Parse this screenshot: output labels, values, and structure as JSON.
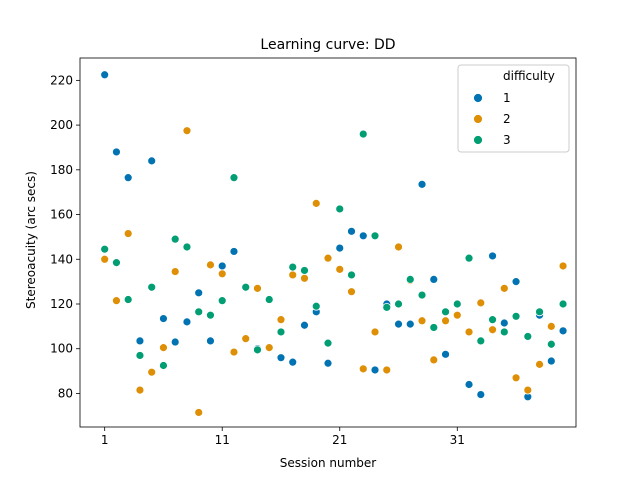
{
  "chart_data": {
    "type": "scatter",
    "title": "Learning curve: DD",
    "xlabel": "Session number",
    "ylabel": "Stereoacuity (arc secs)",
    "xlim": [
      -1.1,
      41.1
    ],
    "ylim": [
      65,
      230
    ],
    "xticks": [
      1,
      11,
      21,
      31
    ],
    "yticks": [
      80,
      100,
      120,
      140,
      160,
      180,
      200,
      220
    ],
    "grid": false,
    "legend": {
      "title": "difficulty",
      "placement": "top-right",
      "entries": [
        {
          "label": "1",
          "color": "#0173b2"
        },
        {
          "label": "2",
          "color": "#de8f05"
        },
        {
          "label": "3",
          "color": "#029e73"
        }
      ]
    },
    "series": [
      {
        "name": "1",
        "color": "#0173b2",
        "points": [
          [
            1,
            222.5
          ],
          [
            2,
            188
          ],
          [
            3,
            176.5
          ],
          [
            4,
            103.5
          ],
          [
            5,
            184
          ],
          [
            6,
            113.5
          ],
          [
            7,
            103
          ],
          [
            8,
            112
          ],
          [
            9,
            125
          ],
          [
            10,
            103.5
          ],
          [
            11,
            137
          ],
          [
            12,
            143.5
          ],
          [
            14,
            100
          ],
          [
            16,
            96
          ],
          [
            17,
            94
          ],
          [
            18,
            110.5
          ],
          [
            19,
            116.5
          ],
          [
            20,
            93.5
          ],
          [
            21,
            145
          ],
          [
            22,
            152.5
          ],
          [
            23,
            150.5
          ],
          [
            24,
            90.5
          ],
          [
            25,
            120
          ],
          [
            26,
            111
          ],
          [
            27,
            111
          ],
          [
            28,
            173.5
          ],
          [
            29,
            131
          ],
          [
            30,
            97.5
          ],
          [
            32,
            84
          ],
          [
            33,
            79.5
          ],
          [
            34,
            141.5
          ],
          [
            35,
            111.5
          ],
          [
            36,
            130
          ],
          [
            37,
            78.5
          ],
          [
            38,
            115
          ],
          [
            39,
            94.5
          ],
          [
            40,
            108
          ]
        ]
      },
      {
        "name": "2",
        "color": "#de8f05",
        "points": [
          [
            1,
            140
          ],
          [
            2,
            121.5
          ],
          [
            3,
            151.5
          ],
          [
            4,
            81.5
          ],
          [
            5,
            89.5
          ],
          [
            6,
            100.5
          ],
          [
            7,
            134.5
          ],
          [
            8,
            197.5
          ],
          [
            9,
            71.5
          ],
          [
            10,
            137.5
          ],
          [
            11,
            133.5
          ],
          [
            12,
            98.5
          ],
          [
            13,
            104.5
          ],
          [
            14,
            127
          ],
          [
            15,
            100.5
          ],
          [
            16,
            113
          ],
          [
            17,
            133
          ],
          [
            18,
            131.5
          ],
          [
            19,
            165
          ],
          [
            20,
            140.5
          ],
          [
            21,
            135.5
          ],
          [
            22,
            125.5
          ],
          [
            23,
            91
          ],
          [
            24,
            107.5
          ],
          [
            25,
            90.5
          ],
          [
            26,
            145.5
          ],
          [
            27,
            130.5
          ],
          [
            28,
            112.5
          ],
          [
            29,
            95
          ],
          [
            30,
            112.5
          ],
          [
            31,
            115
          ],
          [
            32,
            107.5
          ],
          [
            33,
            120.5
          ],
          [
            34,
            108.5
          ],
          [
            35,
            127
          ],
          [
            36,
            87
          ],
          [
            37,
            81.5
          ],
          [
            38,
            93
          ],
          [
            39,
            110
          ],
          [
            40,
            137
          ]
        ]
      },
      {
        "name": "3",
        "color": "#029e73",
        "points": [
          [
            1,
            144.5
          ],
          [
            2,
            138.5
          ],
          [
            3,
            122
          ],
          [
            4,
            97
          ],
          [
            5,
            127.5
          ],
          [
            6,
            92.5
          ],
          [
            7,
            149
          ],
          [
            8,
            145.5
          ],
          [
            9,
            116.5
          ],
          [
            10,
            115
          ],
          [
            11,
            121.5
          ],
          [
            12,
            176.5
          ],
          [
            13,
            127.5
          ],
          [
            14,
            99.5
          ],
          [
            15,
            122
          ],
          [
            16,
            107.5
          ],
          [
            17,
            136.5
          ],
          [
            18,
            135
          ],
          [
            19,
            119
          ],
          [
            20,
            102.5
          ],
          [
            21,
            162.5
          ],
          [
            22,
            133
          ],
          [
            23,
            196
          ],
          [
            24,
            150.5
          ],
          [
            25,
            118.5
          ],
          [
            26,
            120
          ],
          [
            27,
            131
          ],
          [
            28,
            124
          ],
          [
            29,
            109.5
          ],
          [
            30,
            116.5
          ],
          [
            31,
            120
          ],
          [
            32,
            140.5
          ],
          [
            33,
            103.5
          ],
          [
            34,
            113
          ],
          [
            35,
            107.5
          ],
          [
            36,
            114.5
          ],
          [
            37,
            105.5
          ],
          [
            38,
            116.5
          ],
          [
            39,
            102
          ],
          [
            40,
            120
          ]
        ]
      }
    ]
  }
}
